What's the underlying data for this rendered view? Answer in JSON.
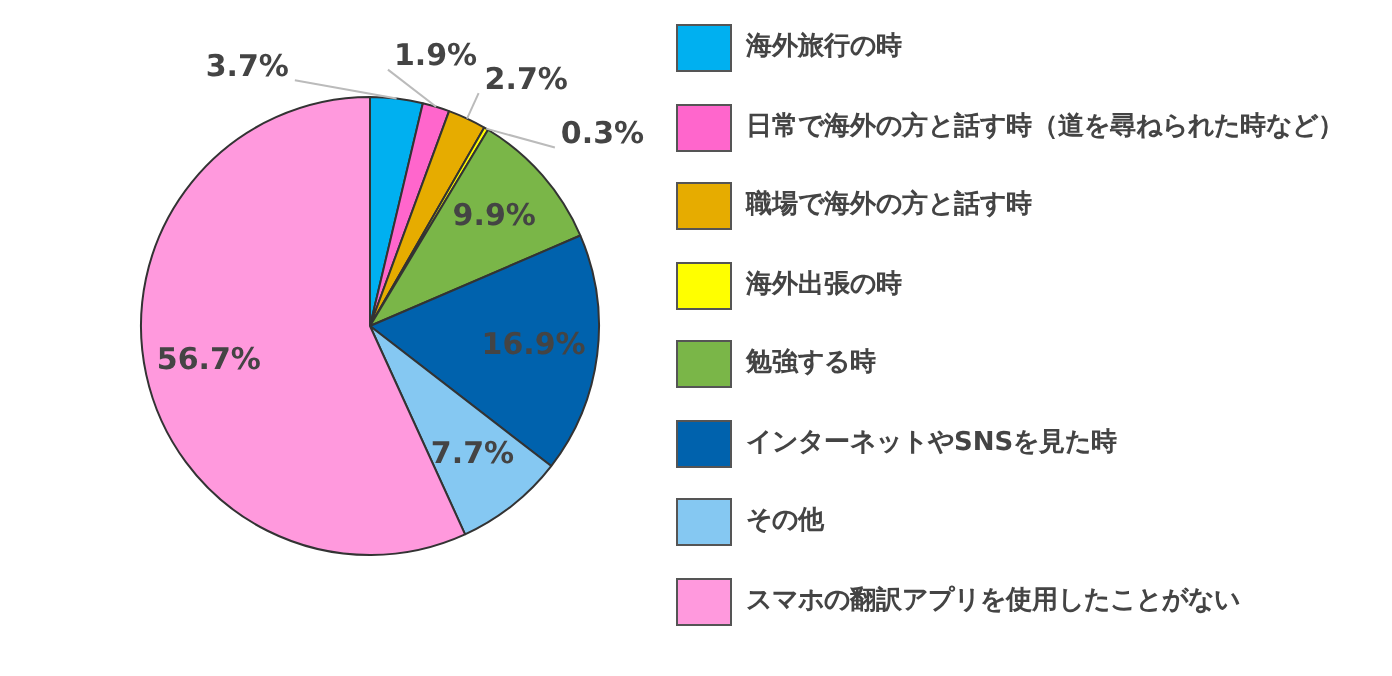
{
  "chart_data": {
    "type": "pie",
    "categories": [
      "海外旅行の時",
      "日常で海外の方と話す時（道を尋ねられた時など）",
      "職場で海外の方と話す時",
      "海外出張の時",
      "勉強する時",
      "インターネットやSNSを見た時",
      "その他",
      "スマホの翻訳アプリを使用したことがない"
    ],
    "values": [
      3.7,
      1.9,
      2.7,
      0.3,
      9.9,
      16.9,
      7.7,
      56.7
    ],
    "colors": [
      "#00b0f0",
      "#ff66cc",
      "#e6ac00",
      "#ffff00",
      "#7ab648",
      "#0062ad",
      "#85c8f2",
      "#ff99dd"
    ],
    "value_labels": [
      "3.7%",
      "1.9%",
      "2.7%",
      "0.3%",
      "9.9%",
      "16.9%",
      "7.7%",
      "56.7%"
    ],
    "legend": "right"
  }
}
